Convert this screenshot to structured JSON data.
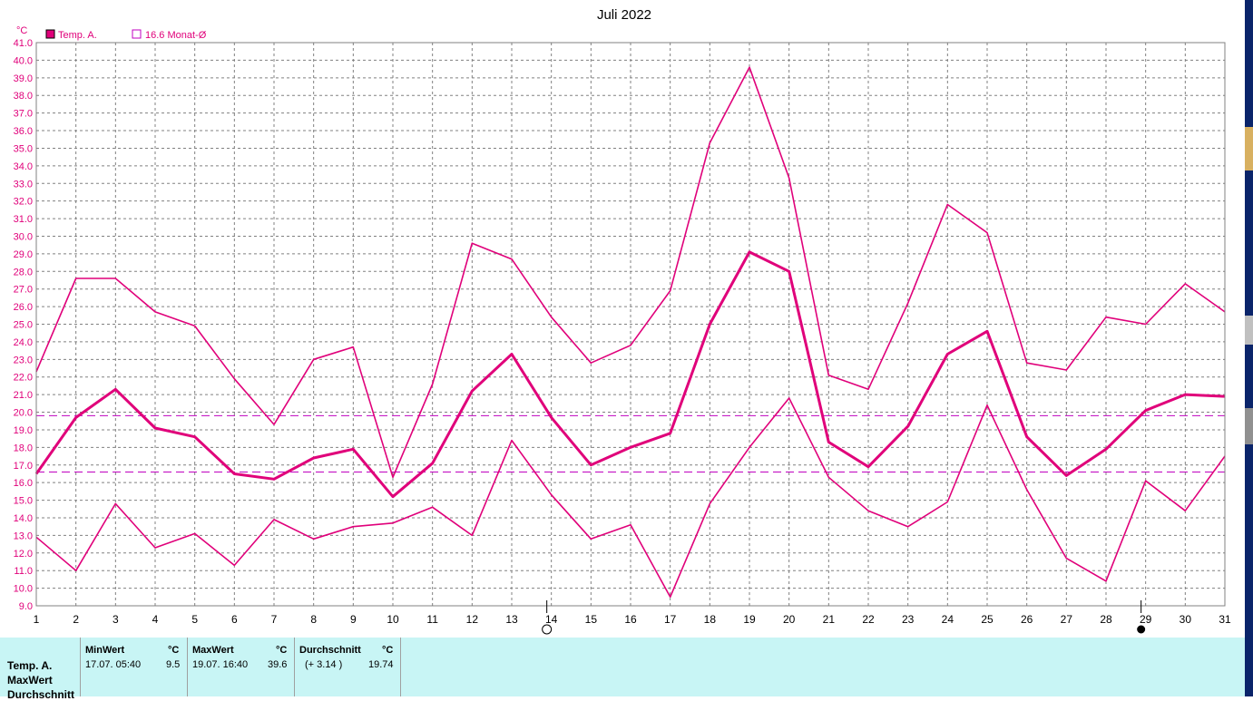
{
  "chart_data": {
    "type": "line",
    "title": "Juli 2022",
    "ylabel": "°C",
    "x": [
      1,
      2,
      3,
      4,
      5,
      6,
      7,
      8,
      9,
      10,
      11,
      12,
      13,
      14,
      15,
      16,
      17,
      18,
      19,
      20,
      21,
      22,
      23,
      24,
      25,
      26,
      27,
      28,
      29,
      30,
      31
    ],
    "ylim": [
      9.0,
      41.0
    ],
    "ytick_step": 1.0,
    "grid": true,
    "legend_position": "top-left",
    "series": [
      {
        "name": "Temp. A.",
        "role": "max",
        "color": "#e0007a",
        "values": [
          22.3,
          27.6,
          27.6,
          25.7,
          24.9,
          21.9,
          19.3,
          23.0,
          23.7,
          16.3,
          21.6,
          29.6,
          28.7,
          25.4,
          22.8,
          23.8,
          26.9,
          35.3,
          39.6,
          33.3,
          22.1,
          21.3,
          26.2,
          31.8,
          30.2,
          22.8,
          22.4,
          25.4,
          25.0,
          27.3,
          25.7
        ]
      },
      {
        "name": "",
        "role": "mean",
        "color": "#e0007a",
        "values": [
          16.5,
          19.7,
          21.3,
          19.1,
          18.6,
          16.5,
          16.2,
          17.4,
          17.9,
          15.2,
          17.1,
          21.2,
          23.3,
          19.7,
          17.0,
          18.0,
          18.8,
          25.0,
          29.1,
          28.0,
          18.3,
          16.9,
          19.2,
          23.3,
          24.6,
          18.6,
          16.4,
          17.9,
          20.1,
          21.0,
          20.9
        ]
      },
      {
        "name": "",
        "role": "min",
        "color": "#e0007a",
        "values": [
          12.9,
          11.0,
          14.8,
          12.3,
          13.1,
          11.3,
          13.9,
          12.8,
          13.5,
          13.7,
          14.6,
          13.0,
          18.4,
          15.3,
          12.8,
          13.6,
          9.5,
          14.8,
          18.0,
          20.8,
          16.3,
          14.4,
          13.5,
          14.9,
          20.4,
          15.6,
          11.7,
          10.4,
          16.1,
          14.4,
          17.5
        ]
      }
    ],
    "reference_lines": [
      {
        "label": "16.6 Monat-Ø",
        "value": 16.6,
        "color": "#c000c0"
      },
      {
        "value": 19.8,
        "color": "#c000c0"
      }
    ],
    "legend": [
      {
        "label": "Temp. A.",
        "color": "#e0007a",
        "filled": true
      },
      {
        "label": "16.6 Monat-Ø",
        "color": "#c000c0",
        "filled": false
      }
    ],
    "moon_markers": [
      {
        "day": 14,
        "phase": "full"
      },
      {
        "day": 29,
        "phase": "new"
      }
    ]
  },
  "panel": {
    "row_labels": [
      "Temp. A.",
      "MaxWert",
      "Durchschnitt"
    ],
    "min": {
      "header": "MinWert",
      "unit": "°C",
      "when": "17.07.  05:40",
      "value": "9.5"
    },
    "max": {
      "header": "MaxWert",
      "unit": "°C",
      "when": "19.07.  16:40",
      "value": "39.6"
    },
    "avg": {
      "header": "Durchschnitt",
      "unit": "°C",
      "delta": "(+ 3.14 )",
      "value": "19.74"
    }
  },
  "colors": {
    "series": "#e0007a",
    "reference": "#c000c0",
    "grid": "#808080",
    "panel": "#c8f5f5"
  }
}
